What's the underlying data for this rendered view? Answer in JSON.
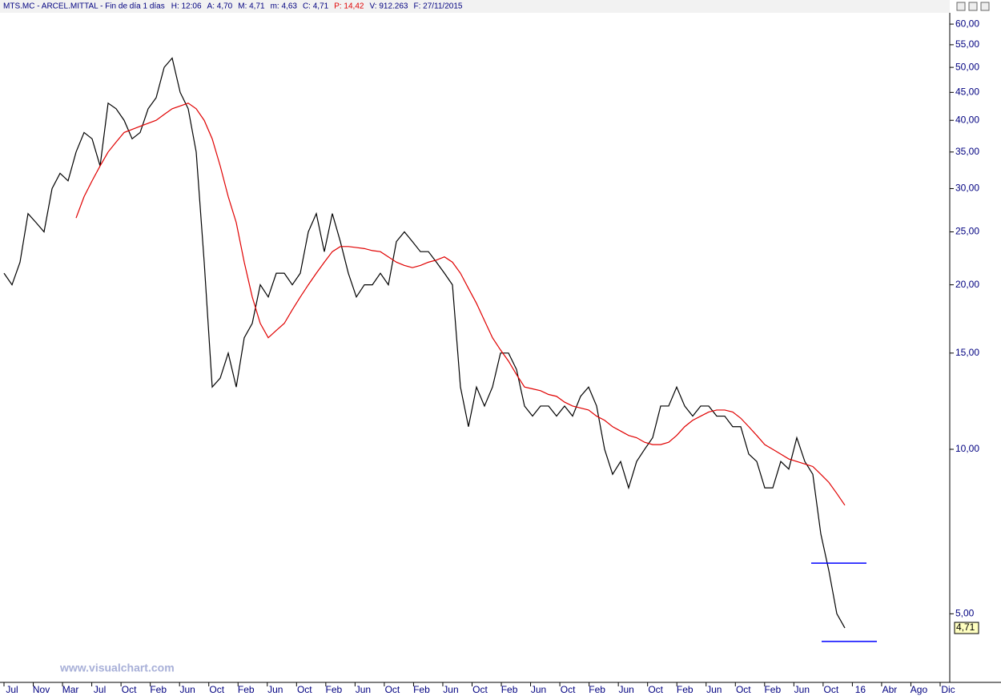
{
  "chart_data": {
    "type": "line",
    "header": {
      "title": "MTS.MC - ARCEL.MITTAL - Fin de día 1 días",
      "fields": [
        {
          "text": "H: 12:06",
          "color": "#000080"
        },
        {
          "text": "A: 4,70",
          "color": "#000080"
        },
        {
          "text": "M: 4,71",
          "color": "#000080"
        },
        {
          "text": "m: 4,63",
          "color": "#000080"
        },
        {
          "text": "C: 4,71",
          "color": "#000080"
        },
        {
          "text": "P: 14,42",
          "color": "#e00000"
        },
        {
          "text": "V: 912.263",
          "color": "#000080"
        },
        {
          "text": "F: 27/11/2015",
          "color": "#000080"
        }
      ]
    },
    "watermark": "www.visualchart.com",
    "log_y": true,
    "ylim": [
      3.77,
      62.5
    ],
    "yticks": [
      {
        "value": 60,
        "label": "60,00"
      },
      {
        "value": 55,
        "label": "55,00"
      },
      {
        "value": 50,
        "label": "50,00"
      },
      {
        "value": 45,
        "label": "45,00"
      },
      {
        "value": 40,
        "label": "40,00"
      },
      {
        "value": 35,
        "label": "35,00"
      },
      {
        "value": 30,
        "label": "30,00"
      },
      {
        "value": 25,
        "label": "25,00"
      },
      {
        "value": 20,
        "label": "20,00"
      },
      {
        "value": 15,
        "label": "15,00"
      },
      {
        "value": 10,
        "label": "10,00"
      },
      {
        "value": 5,
        "label": "5,00"
      }
    ],
    "xtick_labels": [
      "Jul",
      "Nov",
      "Mar",
      "Jul",
      "Oct",
      "Feb",
      "Jun",
      "Oct",
      "Feb",
      "Jun",
      "Oct",
      "Feb",
      "Jun",
      "Oct",
      "Feb",
      "Jun",
      "Oct",
      "Feb",
      "Jun",
      "Oct",
      "Feb",
      "Jun",
      "Oct",
      "Feb",
      "Jun",
      "Oct",
      "Feb",
      "Jun",
      "Oct",
      "16",
      "Abr",
      "Ago",
      "Dic"
    ],
    "series": [
      {
        "color": "#000000",
        "values": [
          21,
          20,
          22,
          27,
          26,
          25,
          30,
          32,
          31,
          35,
          38,
          37,
          33,
          43,
          42,
          40,
          37,
          38,
          42,
          44,
          50,
          52,
          45,
          42,
          35,
          22,
          13,
          13.5,
          15,
          13,
          16,
          17,
          20,
          19,
          21,
          21,
          20,
          21,
          25,
          27,
          23,
          27,
          24,
          21,
          19,
          20,
          20,
          21,
          20,
          24,
          25,
          24,
          23,
          23,
          22,
          21,
          20,
          13,
          11,
          13,
          12,
          13,
          15,
          15,
          14,
          12,
          11.5,
          12,
          12,
          11.5,
          12,
          11.5,
          12.5,
          13,
          12,
          10,
          9,
          9.5,
          8.5,
          9.5,
          10,
          10.5,
          12,
          12,
          13,
          12,
          11.5,
          12,
          12,
          11.5,
          11.5,
          11,
          11,
          9.8,
          9.5,
          8.5,
          8.5,
          9.5,
          9.2,
          10.5,
          9.5,
          9,
          7,
          6,
          5,
          4.71
        ]
      },
      {
        "color": "#e00000",
        "values": [
          null,
          null,
          null,
          null,
          null,
          null,
          null,
          null,
          null,
          26.5,
          29,
          31,
          33,
          35,
          36.5,
          38,
          38.5,
          39,
          39.5,
          40,
          41,
          42,
          42.5,
          43,
          42,
          40,
          37,
          33,
          29,
          26,
          22,
          19,
          17,
          16,
          16.5,
          17,
          18,
          19,
          20,
          21,
          22,
          23,
          23.5,
          23.5,
          23.4,
          23.3,
          23.1,
          23,
          22.5,
          22,
          21.7,
          21.5,
          21.7,
          22,
          22.2,
          22.5,
          22,
          21,
          19.7,
          18.5,
          17.2,
          16,
          15.2,
          14.5,
          13.7,
          13,
          12.9,
          12.8,
          12.6,
          12.5,
          12.2,
          12,
          11.9,
          11.8,
          11.5,
          11.3,
          11,
          10.8,
          10.6,
          10.5,
          10.3,
          10.2,
          10.2,
          10.3,
          10.6,
          11,
          11.3,
          11.5,
          11.7,
          11.8,
          11.8,
          11.7,
          11.4,
          11,
          10.6,
          10.2,
          10,
          9.8,
          9.6,
          9.5,
          9.4,
          9.3,
          9,
          8.7,
          8.3,
          7.9
        ]
      }
    ],
    "hlines": [
      {
        "value": 6.19,
        "color": "#0000ff"
      },
      {
        "value": 4.45,
        "color": "#0000ff"
      }
    ],
    "last_price": {
      "value": 4.71,
      "label": "4,71"
    }
  }
}
